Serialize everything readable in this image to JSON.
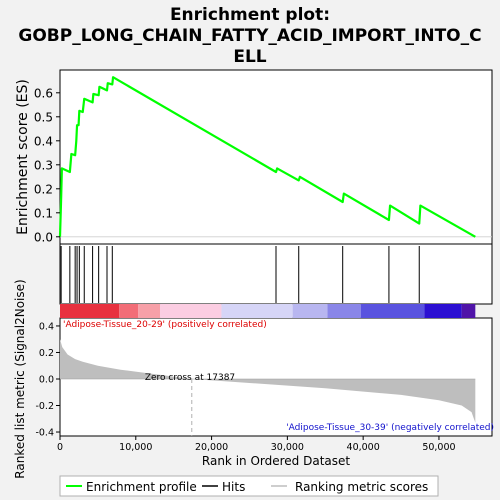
{
  "chart_data": {
    "type": "line",
    "title": "Enrichment plot: GOBP_LONG_CHAIN_FATTY_ACID_IMPORT_INTO_CELL",
    "title_lines": [
      "Enrichment plot:",
      "GOBP_LONG_CHAIN_FATTY_ACID_IMPORT_INTO_C",
      "ELL"
    ],
    "xlabel": "Rank in Ordered Dataset",
    "xlim": [
      0,
      57000
    ],
    "x_ticks": [
      0,
      10000,
      20000,
      30000,
      40000,
      50000
    ],
    "x_tick_labels": [
      "0",
      "10,000",
      "20,000",
      "30,000",
      "40,000",
      "50,000"
    ],
    "es_panel": {
      "ylabel": "Enrichment score (ES)",
      "ylim": [
        -0.03,
        0.695
      ],
      "y_ticks": [
        0.0,
        0.1,
        0.2,
        0.3,
        0.4,
        0.5,
        0.6
      ],
      "y_tick_labels": [
        "0.0",
        "0.1",
        "0.2",
        "0.3",
        "0.4",
        "0.5",
        "0.6"
      ],
      "line_color": "#00ff00",
      "series_name": "Enrichment profile",
      "points": [
        [
          0,
          0.0
        ],
        [
          150,
          0.16
        ],
        [
          250,
          0.285
        ],
        [
          1300,
          0.27
        ],
        [
          1500,
          0.345
        ],
        [
          2000,
          0.34
        ],
        [
          2150,
          0.4
        ],
        [
          2250,
          0.465
        ],
        [
          2450,
          0.465
        ],
        [
          2550,
          0.525
        ],
        [
          3000,
          0.52
        ],
        [
          3200,
          0.575
        ],
        [
          4300,
          0.56
        ],
        [
          4400,
          0.595
        ],
        [
          5100,
          0.59
        ],
        [
          5200,
          0.625
        ],
        [
          6200,
          0.61
        ],
        [
          6300,
          0.64
        ],
        [
          6900,
          0.635
        ],
        [
          7000,
          0.665
        ],
        [
          28500,
          0.27
        ],
        [
          28650,
          0.285
        ],
        [
          31500,
          0.235
        ],
        [
          31650,
          0.25
        ],
        [
          37300,
          0.145
        ],
        [
          37450,
          0.18
        ],
        [
          43400,
          0.07
        ],
        [
          43550,
          0.13
        ],
        [
          47400,
          0.055
        ],
        [
          47550,
          0.13
        ],
        [
          54800,
          0.0
        ]
      ]
    },
    "hits": [
      150,
      1300,
      2000,
      2250,
      2550,
      3200,
      4300,
      5100,
      6200,
      6900,
      28500,
      31500,
      37300,
      43400,
      47400
    ],
    "ranking_panel": {
      "ylabel": "Ranked list metric (Signal2Noise)",
      "ylim": [
        -0.43,
        0.46
      ],
      "y_ticks": [
        -0.4,
        -0.2,
        0.0,
        0.2,
        0.4
      ],
      "y_tick_labels": [
        "-0.4",
        "-0.2",
        "0.0",
        "0.2",
        "0.4"
      ],
      "series_name": "Ranking metric scores",
      "fill_color": "#bebebe",
      "profile": [
        [
          0,
          0.3
        ],
        [
          300,
          0.24
        ],
        [
          1000,
          0.185
        ],
        [
          2000,
          0.15
        ],
        [
          3000,
          0.13
        ],
        [
          5000,
          0.1
        ],
        [
          8000,
          0.07
        ],
        [
          12000,
          0.04
        ],
        [
          17387,
          0.0
        ],
        [
          25000,
          -0.03
        ],
        [
          35000,
          -0.07
        ],
        [
          45000,
          -0.12
        ],
        [
          50000,
          -0.16
        ],
        [
          53000,
          -0.2
        ],
        [
          54300,
          -0.25
        ],
        [
          54800,
          -0.33
        ]
      ],
      "zero_cross": 17387,
      "zero_cross_label": "Zero cross at 17387",
      "positive_label": "'Adipose-Tissue_20-29' (positively correlated)",
      "negative_label": "'Adipose-Tissue_30-39' (negatively correlated)"
    },
    "color_bar": {
      "segments": [
        {
          "end": 7800,
          "color": "#e8313f"
        },
        {
          "end": 10300,
          "color": "#f26d77"
        },
        {
          "end": 13200,
          "color": "#f7a0a8"
        },
        {
          "end": 21300,
          "color": "#fbcde2"
        },
        {
          "end": 30700,
          "color": "#d6d5f7"
        },
        {
          "end": 35300,
          "color": "#b8b6f0"
        },
        {
          "end": 39700,
          "color": "#8a86e8"
        },
        {
          "end": 48100,
          "color": "#5a53df"
        },
        {
          "end": 53000,
          "color": "#2c10d2"
        },
        {
          "end": 54800,
          "color": "#5014a8"
        }
      ]
    },
    "legend": {
      "placement": "bottom",
      "items": [
        {
          "label": "Enrichment profile",
          "kind": "es"
        },
        {
          "label": "Hits",
          "kind": "hit"
        },
        {
          "label": "Ranking metric scores",
          "kind": "rank"
        }
      ]
    }
  }
}
